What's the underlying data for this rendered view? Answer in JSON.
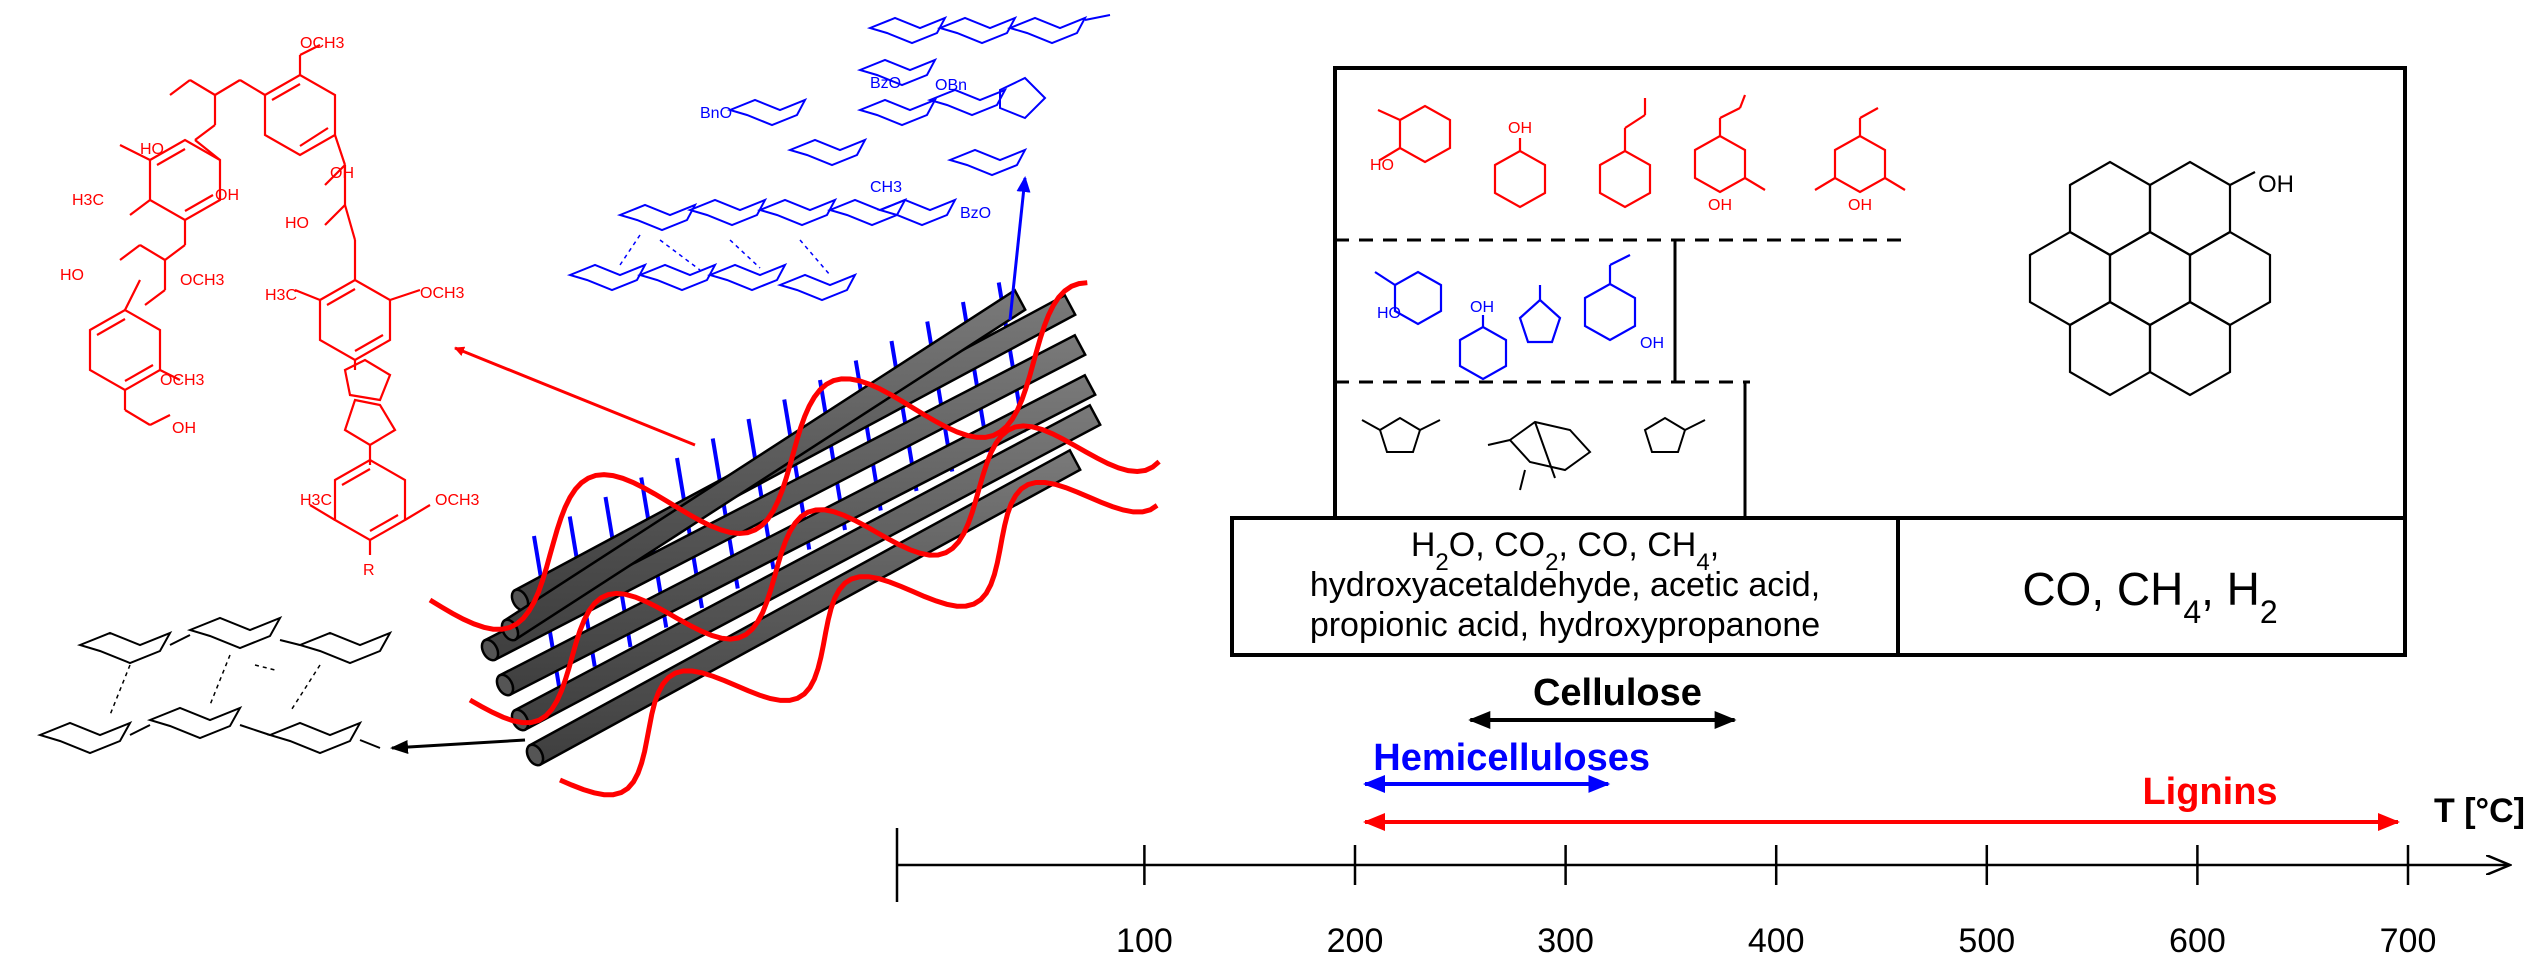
{
  "colors": {
    "lignin": "#ff0000",
    "hemicellulose": "#0000ff",
    "cellulose": "#000000",
    "fiber": "#595959"
  },
  "axis": {
    "title": "T [°C]",
    "ticks": [
      "100",
      "200",
      "300",
      "400",
      "500",
      "600",
      "700"
    ]
  },
  "ranges": {
    "cellulose": {
      "label": "Cellulose",
      "from": 250,
      "to": 385
    },
    "hemicelluloses": {
      "label": "Hemicelluloses",
      "from": 200,
      "to": 325
    },
    "lignins": {
      "label": "Lignins",
      "from": 200,
      "to": 700
    }
  },
  "gas_box": {
    "left_line1_parts": [
      "H",
      "2",
      "O, CO",
      "2",
      ", CO, CH",
      "4",
      ","
    ],
    "left_line2": "hydroxyacetaldehyde, acetic acid,",
    "left_line3": "propionic acid, hydroxypropanone",
    "right_parts": [
      "CO, CH",
      "4",
      ", H",
      "2"
    ]
  },
  "structure_labels": {
    "oh": "OH",
    "oh_right": "OH",
    "r": "R",
    "h3co": "H3C",
    "och3": "OCH3",
    "ho": "HO",
    "bzo": "BzO",
    "obn": "OBn",
    "bno": "BnO",
    "ch3": "CH3"
  }
}
